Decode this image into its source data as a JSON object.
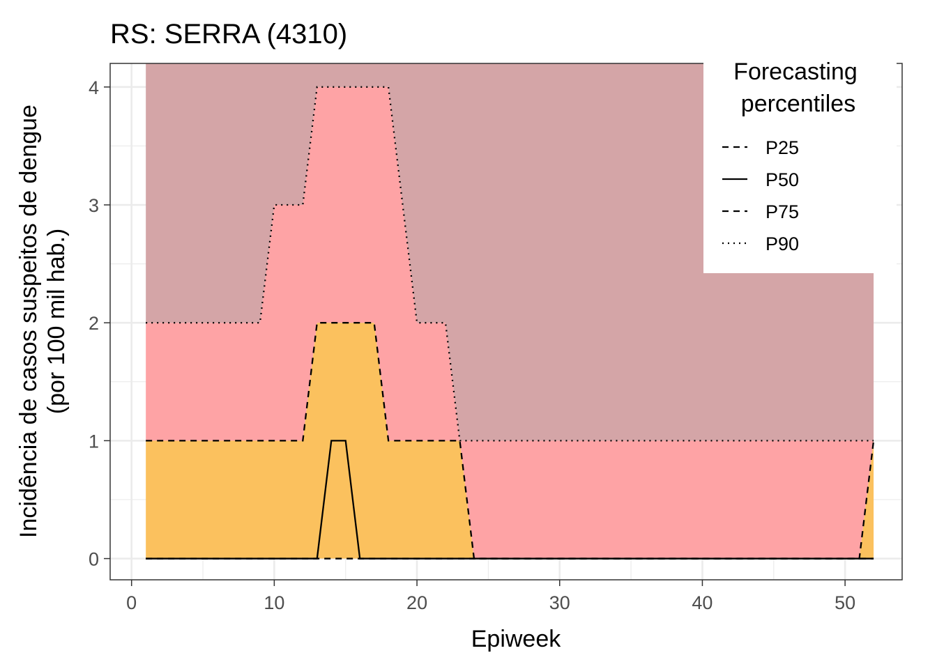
{
  "chart_data": {
    "type": "area",
    "title": "RS: SERRA (4310)",
    "xlabel": "Epiweek",
    "ylabel_line1": "Incidência de casos suspeitos de dengue",
    "ylabel_line2": "(por 100 mil hab.)",
    "xlim": [
      -1.5,
      54
    ],
    "ylim": [
      -0.18,
      4.2
    ],
    "xticks": [
      0,
      10,
      20,
      30,
      40,
      50
    ],
    "yticks": [
      0,
      1,
      2,
      3,
      4
    ],
    "grid": true,
    "legend": {
      "title_line1": "Forecasting",
      "title_line2": "percentiles",
      "placement": "top-right",
      "entries": [
        {
          "label": "P25",
          "dash": "dashed"
        },
        {
          "label": "P50",
          "dash": "solid"
        },
        {
          "label": "P75",
          "dash": "dashed"
        },
        {
          "label": "P90",
          "dash": "dotted"
        }
      ]
    },
    "bands": [
      {
        "name": "above",
        "color": "#d4a5a7"
      },
      {
        "name": "p75-p90",
        "color": "#fea3a5"
      },
      {
        "name": "p25-p75",
        "color": "#fbc15e"
      }
    ],
    "x_range": [
      1,
      52
    ],
    "y_top": 4.2,
    "series": [
      {
        "name": "P25",
        "dash": "dashed",
        "points": [
          [
            1,
            0
          ],
          [
            13,
            0
          ],
          [
            14,
            0
          ],
          [
            16,
            0
          ],
          [
            23,
            0
          ],
          [
            24,
            0
          ],
          [
            51,
            0
          ],
          [
            52,
            0
          ]
        ]
      },
      {
        "name": "P50",
        "dash": "solid",
        "points": [
          [
            1,
            0
          ],
          [
            13,
            0
          ],
          [
            14,
            1
          ],
          [
            15,
            1
          ],
          [
            16,
            0
          ],
          [
            51,
            0
          ],
          [
            52,
            0
          ]
        ]
      },
      {
        "name": "P75",
        "dash": "dashed",
        "points": [
          [
            1,
            1
          ],
          [
            12,
            1
          ],
          [
            13,
            2
          ],
          [
            17,
            2
          ],
          [
            18,
            1
          ],
          [
            23,
            1
          ],
          [
            24,
            0
          ],
          [
            51,
            0
          ],
          [
            52,
            1
          ]
        ]
      },
      {
        "name": "P90",
        "dash": "dotted",
        "points": [
          [
            1,
            2
          ],
          [
            9,
            2
          ],
          [
            10,
            3
          ],
          [
            12,
            3
          ],
          [
            13,
            4
          ],
          [
            18,
            4
          ],
          [
            20,
            2
          ],
          [
            22,
            2
          ],
          [
            23,
            1
          ],
          [
            52,
            1
          ]
        ]
      }
    ]
  }
}
